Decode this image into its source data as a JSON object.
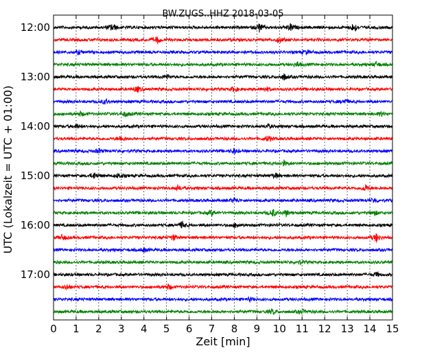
{
  "chart_data": {
    "type": "line",
    "title": "BW.ZUGS..HHZ 2018-03-05",
    "xlabel": "Zeit  [min]",
    "ylabel": "UTC (Lokalzeit = UTC + 01:00)",
    "xlim": [
      0,
      15
    ],
    "x_ticks": [
      "0",
      "1",
      "2",
      "3",
      "4",
      "5",
      "6",
      "7",
      "8",
      "9",
      "10",
      "11",
      "12",
      "13",
      "14",
      "15"
    ],
    "y_tick_labels": [
      "12:00",
      "13:00",
      "14:00",
      "15:00",
      "16:00",
      "17:00"
    ],
    "grid": "vertical dotted",
    "trace_colors": [
      "#000000",
      "#ff0000",
      "#0000ff",
      "#008000"
    ],
    "traces": [
      {
        "start": "12:00",
        "events": [
          [
            2.6,
            0.8
          ],
          [
            9.1,
            0.9
          ],
          [
            10.5,
            0.8
          ],
          [
            13.3,
            1.0
          ]
        ]
      },
      {
        "start": "12:15",
        "events": [
          [
            4.6,
            0.7
          ],
          [
            10.0,
            0.6
          ]
        ]
      },
      {
        "start": "12:30",
        "events": [
          [
            1.1,
            0.4
          ],
          [
            11.2,
            0.4
          ]
        ]
      },
      {
        "start": "12:45",
        "events": [
          [
            10.8,
            0.5
          ],
          [
            14.3,
            0.5
          ]
        ]
      },
      {
        "start": "13:00",
        "events": [
          [
            5.0,
            0.5
          ],
          [
            10.2,
            0.6
          ]
        ]
      },
      {
        "start": "13:15",
        "events": [
          [
            3.7,
            0.6
          ],
          [
            8.0,
            0.5
          ],
          [
            9.4,
            0.5
          ]
        ]
      },
      {
        "start": "13:30",
        "events": [
          [
            2.3,
            0.5
          ],
          [
            12.9,
            0.5
          ]
        ]
      },
      {
        "start": "13:45",
        "events": [
          [
            1.2,
            0.4
          ],
          [
            3.2,
            0.5
          ],
          [
            14.5,
            0.4
          ]
        ]
      },
      {
        "start": "14:00",
        "events": [
          [
            1.0,
            0.4
          ],
          [
            9.5,
            0.4
          ]
        ]
      },
      {
        "start": "14:15",
        "events": [
          [
            3.0,
            0.6
          ],
          [
            9.5,
            0.6
          ]
        ]
      },
      {
        "start": "14:30",
        "events": [
          [
            2.0,
            0.4
          ],
          [
            8.0,
            0.5
          ]
        ]
      },
      {
        "start": "14:45",
        "events": [
          [
            10.2,
            0.5
          ]
        ]
      },
      {
        "start": "15:00",
        "events": [
          [
            1.8,
            0.6
          ],
          [
            2.9,
            0.5
          ],
          [
            9.8,
            0.6
          ]
        ]
      },
      {
        "start": "15:15",
        "events": [
          [
            5.5,
            0.5
          ],
          [
            13.8,
            0.7
          ]
        ]
      },
      {
        "start": "15:30",
        "events": [
          [
            8.0,
            0.5
          ],
          [
            14.2,
            0.5
          ]
        ]
      },
      {
        "start": "15:45",
        "events": [
          [
            7.0,
            0.5
          ],
          [
            9.7,
            0.8
          ],
          [
            10.3,
            0.6
          ],
          [
            14.2,
            0.5
          ]
        ]
      },
      {
        "start": "16:00",
        "events": [
          [
            5.7,
            0.7
          ],
          [
            8.1,
            0.5
          ]
        ]
      },
      {
        "start": "16:15",
        "events": [
          [
            0.4,
            0.6
          ],
          [
            5.3,
            0.5
          ],
          [
            14.3,
            0.9
          ]
        ]
      },
      {
        "start": "16:30",
        "events": [
          [
            4.0,
            0.4
          ]
        ]
      },
      {
        "start": "16:45",
        "events": [
          [
            10.9,
            0.4
          ]
        ]
      },
      {
        "start": "17:00",
        "events": [
          [
            14.3,
            0.4
          ]
        ]
      },
      {
        "start": "17:15",
        "events": [
          [
            0.6,
            0.5
          ],
          [
            5.1,
            0.5
          ]
        ]
      },
      {
        "start": "17:30",
        "events": [
          [
            8.7,
            0.3
          ]
        ]
      },
      {
        "start": "17:45",
        "events": [
          [
            9.7,
            0.5
          ],
          [
            11.0,
            0.4
          ]
        ]
      }
    ]
  }
}
